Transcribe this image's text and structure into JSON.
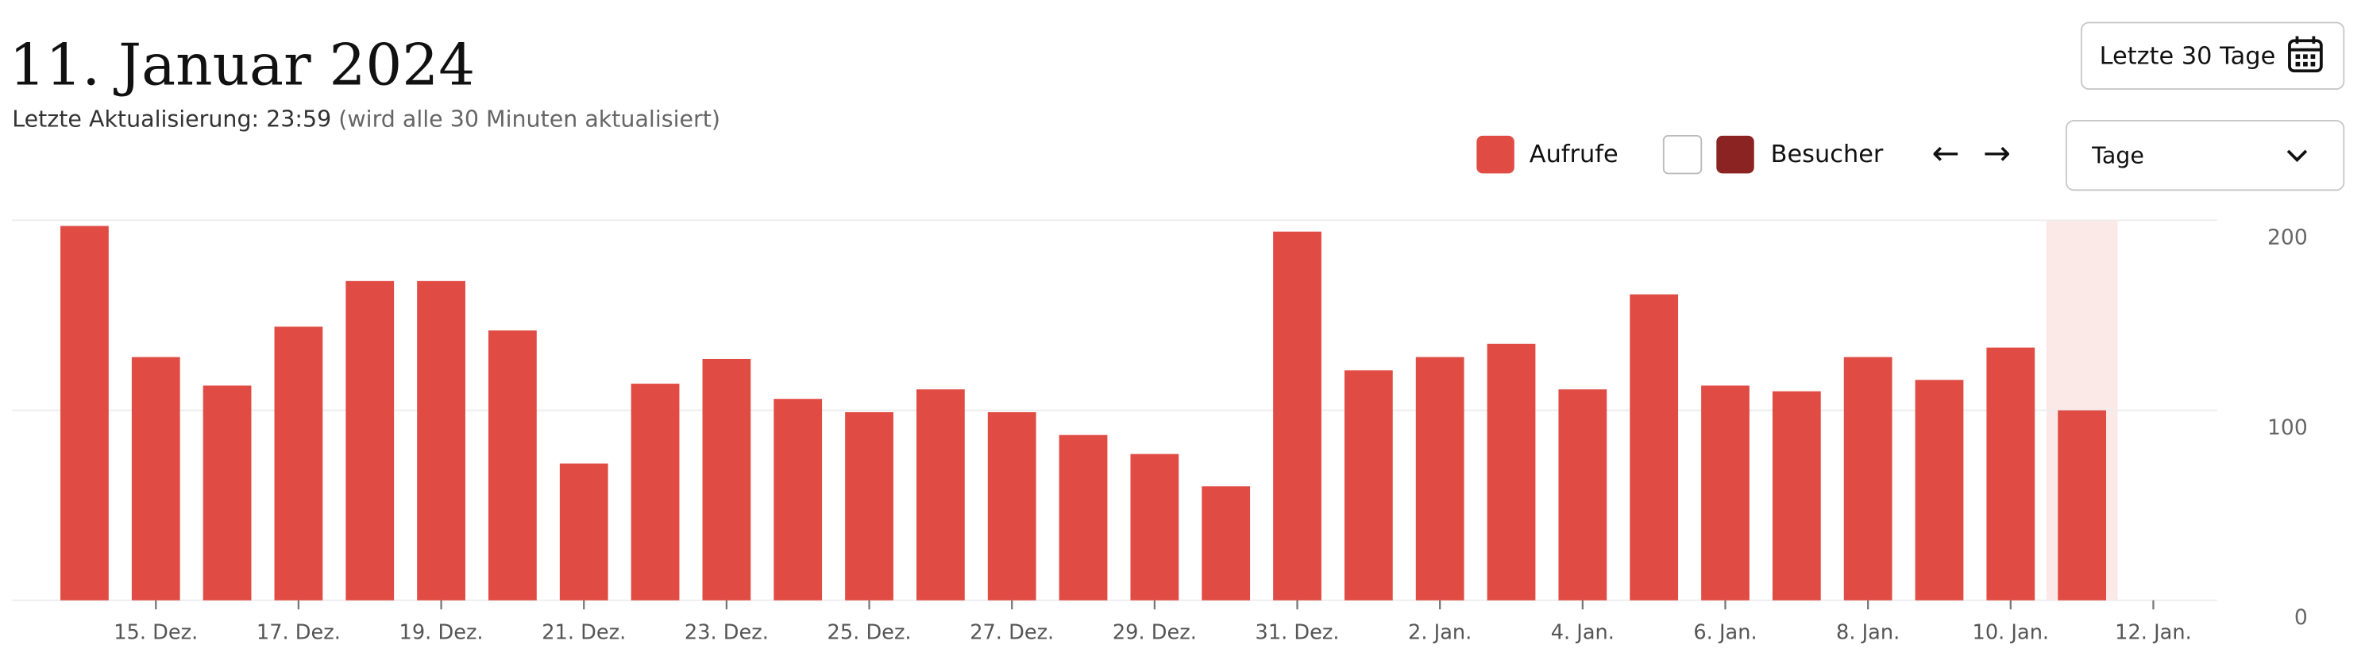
{
  "header": {
    "title": "11. Januar 2024",
    "subtitle_main": "Letzte Aktualisierung: 23:59",
    "subtitle_note": "(wird alle 30 Minuten aktualisiert)",
    "range_button": "Letzte 30 Tage"
  },
  "controls": {
    "legend": [
      {
        "name": "Aufrufe",
        "color": "#e04c44",
        "checked": true
      },
      {
        "name": "Besucher",
        "color": "#8b2323",
        "checked": false
      }
    ],
    "prev": "←",
    "next": "→",
    "period_select": "Tage"
  },
  "chart_data": {
    "type": "bar",
    "categories": [
      null,
      "15. Dez.",
      null,
      "17. Dez.",
      null,
      "19. Dez.",
      null,
      "21. Dez.",
      null,
      "23. Dez.",
      null,
      "25. Dez.",
      null,
      "27. Dez.",
      null,
      "29. Dez.",
      null,
      "31. Dez.",
      null,
      "2. Jan.",
      null,
      "4. Jan.",
      null,
      "6. Jan.",
      null,
      "8. Jan.",
      null,
      "10. Jan.",
      null,
      "12. Jan."
    ],
    "series": [
      {
        "name": "Aufrufe",
        "color": "#e04c44",
        "values": [
          197,
          128,
          113,
          144,
          168,
          168,
          142,
          72,
          114,
          127,
          106,
          99,
          111,
          99,
          87,
          77,
          60,
          194,
          121,
          128,
          135,
          111,
          161,
          113,
          110,
          128,
          116,
          133,
          100,
          null
        ]
      }
    ],
    "ylim": [
      0,
      200
    ],
    "yticks": [
      0,
      100,
      200
    ],
    "grid": true,
    "highlight_index": 28,
    "highlight_color": "#fbe9e7"
  }
}
